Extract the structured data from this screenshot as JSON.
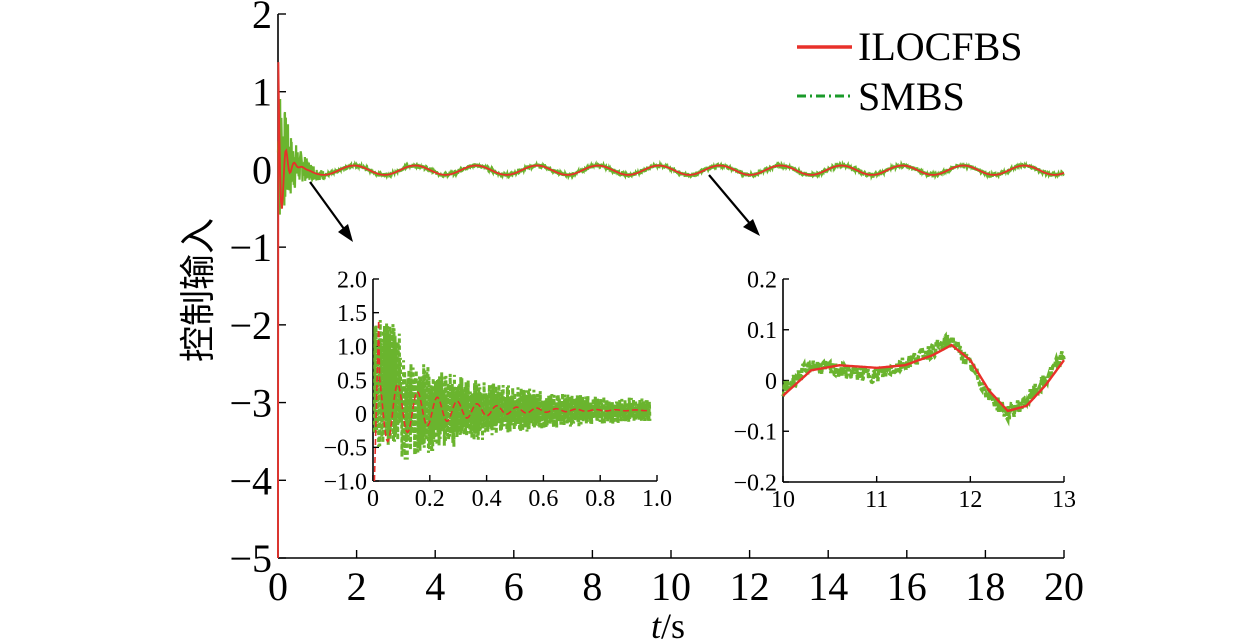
{
  "chart_data": [
    {
      "id": "main",
      "type": "line",
      "title": "",
      "xlabel": "t/s",
      "xlabel_italic": "t",
      "xlabel_rest": "/s",
      "ylabel": "控制输入",
      "xlim": [
        0,
        20
      ],
      "ylim": [
        -5,
        2
      ],
      "xticks": [
        0,
        2,
        4,
        6,
        8,
        10,
        12,
        14,
        16,
        18,
        20
      ],
      "yticks": [
        -5,
        -4,
        -3,
        -2,
        -1,
        0,
        1,
        2
      ],
      "ytick_labels": [
        "−5",
        "−4",
        "−3",
        "−2",
        "−1",
        "0",
        "1",
        "2"
      ],
      "legend": {
        "position": "top-right",
        "entries": [
          "ILOCFBS",
          "SMBS"
        ]
      },
      "series": [
        {
          "name": "ILOCFBS",
          "color": "#e8302a",
          "style": "solid",
          "description_points": {
            "x": [
              0,
              0.02,
              0.05,
              0.1,
              0.3,
              0.6,
              1.0,
              2,
              4,
              6,
              8,
              10,
              12,
              14,
              16,
              18,
              20
            ],
            "y": [
              -5,
              1.4,
              1.2,
              0.6,
              0.3,
              0.1,
              0.0,
              -0.05,
              0.05,
              -0.05,
              0.05,
              0.0,
              0.08,
              -0.05,
              0.06,
              -0.07,
              -0.05
            ]
          }
        },
        {
          "name": "SMBS",
          "color": "#6ab42e",
          "style": "dash-dot",
          "description_points": {
            "x": [
              0,
              0.05,
              0.2,
              0.5,
              1.0,
              2,
              4,
              6,
              8,
              10,
              12,
              14,
              16,
              18,
              20
            ],
            "y": [
              0,
              1.1,
              0.7,
              0.4,
              0.15,
              0.0,
              0.05,
              -0.05,
              0.05,
              0.0,
              0.08,
              -0.05,
              0.06,
              -0.07,
              -0.05
            ]
          }
        }
      ]
    },
    {
      "id": "inset-left",
      "type": "line",
      "xlim": [
        0,
        1.0
      ],
      "ylim": [
        -1.0,
        2.0
      ],
      "xticks": [
        0,
        0.2,
        0.4,
        0.6,
        0.8,
        1.0
      ],
      "xtick_labels": [
        "0",
        "0.2",
        "0.4",
        "0.6",
        "0.8",
        "1.0"
      ],
      "yticks": [
        -1.0,
        -0.5,
        0,
        0.5,
        1.0,
        1.5,
        2.0
      ],
      "ytick_labels": [
        "−1.0",
        "−0.5",
        "0",
        "0.5",
        "1.0",
        "1.5",
        "2.0"
      ]
    },
    {
      "id": "inset-right",
      "type": "line",
      "xlim": [
        10,
        13
      ],
      "ylim": [
        -0.2,
        0.2
      ],
      "xticks": [
        10,
        11,
        12,
        13
      ],
      "xtick_labels": [
        "10",
        "11",
        "12",
        "13"
      ],
      "yticks": [
        -0.2,
        -0.1,
        0,
        0.1,
        0.2
      ],
      "ytick_labels": [
        "−0.2",
        "−0.1",
        "0",
        "0.1",
        "0.2"
      ],
      "series": [
        {
          "name": "ILOCFBS",
          "x": [
            10,
            10.3,
            10.6,
            11,
            11.3,
            11.6,
            11.8,
            12,
            12.2,
            12.4,
            12.6,
            12.8,
            13
          ],
          "y": [
            -0.03,
            0.02,
            0.03,
            0.025,
            0.03,
            0.05,
            0.07,
            0.04,
            -0.02,
            -0.06,
            -0.05,
            -0.01,
            0.04
          ]
        },
        {
          "name": "SMBS",
          "x": [
            10,
            10.3,
            10.6,
            11,
            11.3,
            11.6,
            11.8,
            12,
            12.2,
            12.4,
            12.6,
            12.8,
            13
          ],
          "y": [
            -0.02,
            0.03,
            0.02,
            0.01,
            0.035,
            0.06,
            0.08,
            0.03,
            -0.03,
            -0.065,
            -0.04,
            0.0,
            0.05
          ]
        }
      ]
    }
  ]
}
